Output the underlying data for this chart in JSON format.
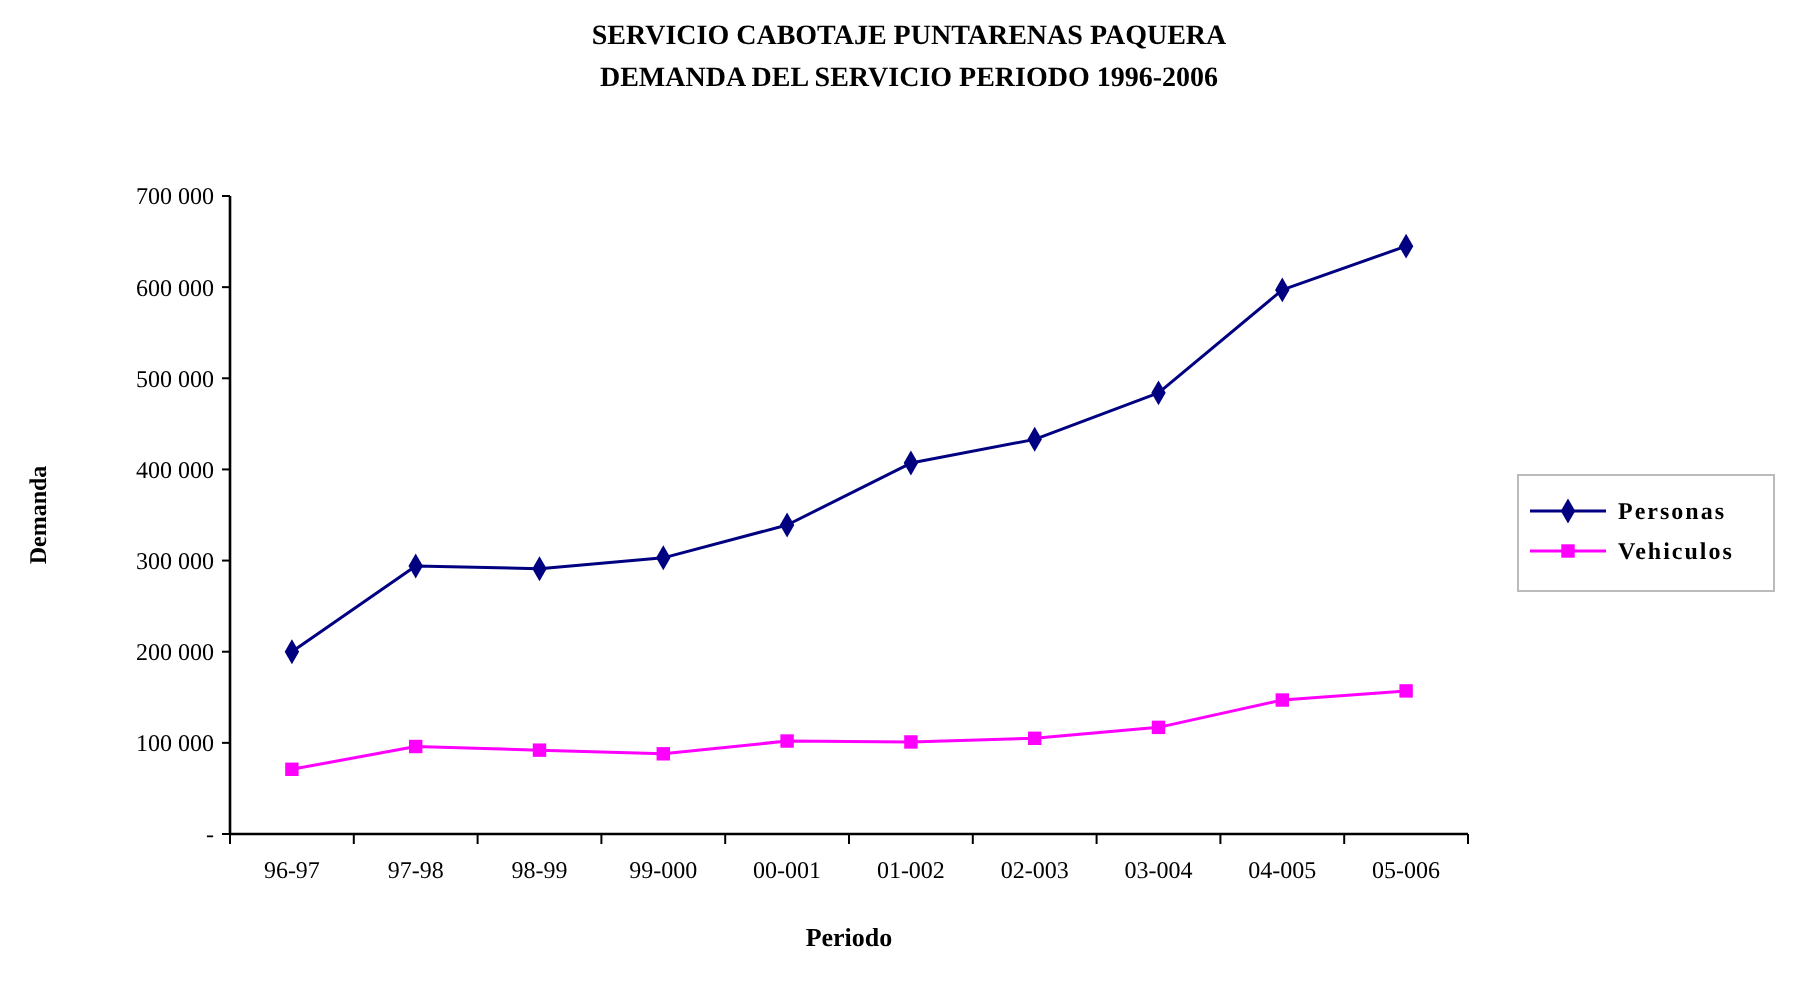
{
  "chart_data": {
    "type": "line",
    "title": "SERVICIO CABOTAJE PUNTARENAS PAQUERA\nDEMANDA DEL SERVICIO PERIODO 1996-2006",
    "xlabel": "Periodo",
    "ylabel": "Demanda",
    "categories": [
      "96-97",
      "97-98",
      "98-99",
      "99-000",
      "00-001",
      "01-002",
      "02-003",
      "03-004",
      "04-005",
      "05-006"
    ],
    "series": [
      {
        "name": "Personas",
        "color": "#000080",
        "marker": "diamond",
        "values": [
          200000,
          294000,
          291000,
          303000,
          339000,
          407000,
          433000,
          484000,
          597000,
          645000
        ]
      },
      {
        "name": "Vehiculos",
        "color": "#ff00ff",
        "marker": "square",
        "values": [
          71000,
          96000,
          92000,
          88000,
          102000,
          101000,
          105000,
          117000,
          147000,
          157000
        ]
      }
    ],
    "ylim": [
      0,
      700000
    ],
    "yticks": [
      {
        "value": 0,
        "label": "-"
      },
      {
        "value": 100000,
        "label": "100 000"
      },
      {
        "value": 200000,
        "label": "200 000"
      },
      {
        "value": 300000,
        "label": "300 000"
      },
      {
        "value": 400000,
        "label": "400 000"
      },
      {
        "value": 500000,
        "label": "500 000"
      },
      {
        "value": 600000,
        "label": "600 000"
      },
      {
        "value": 700000,
        "label": "700 000"
      }
    ],
    "grid": false,
    "legend": "right"
  }
}
